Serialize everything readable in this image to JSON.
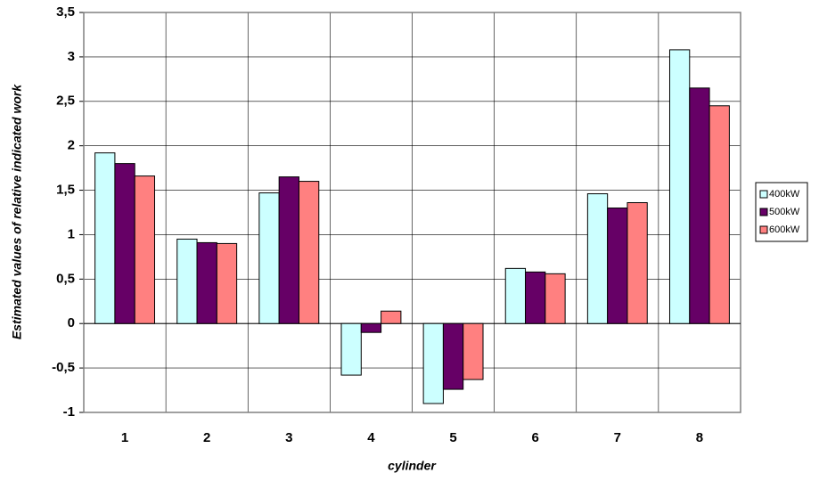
{
  "chart_data": {
    "type": "bar",
    "x_label": "cylinder",
    "y_label": "Estimated values of relative indicated work",
    "categories": [
      "1",
      "2",
      "3",
      "4",
      "5",
      "6",
      "7",
      "8"
    ],
    "series": [
      {
        "name": "400kW",
        "color": "#ccffff",
        "values": [
          1.92,
          0.95,
          1.47,
          -0.58,
          -0.9,
          0.62,
          1.46,
          3.08
        ]
      },
      {
        "name": "500kW",
        "color": "#660066",
        "values": [
          1.8,
          0.91,
          1.65,
          -0.1,
          -0.74,
          0.58,
          1.3,
          2.65
        ]
      },
      {
        "name": "600kW",
        "color": "#ff8080",
        "values": [
          1.66,
          0.9,
          1.6,
          0.14,
          -0.63,
          0.56,
          1.36,
          2.45
        ]
      }
    ],
    "ylim": [
      -1,
      3.5
    ],
    "yticks": [
      -1,
      {
        "value": -0.5,
        "label": "-0,5"
      },
      0,
      {
        "value": 0.5,
        "label": "0,5"
      },
      1,
      {
        "value": 1.5,
        "label": "1,5"
      },
      2,
      {
        "value": 2.5,
        "label": "2,5"
      },
      3,
      {
        "value": 3.5,
        "label": "3,5"
      }
    ],
    "grid": true,
    "legend": "right"
  }
}
